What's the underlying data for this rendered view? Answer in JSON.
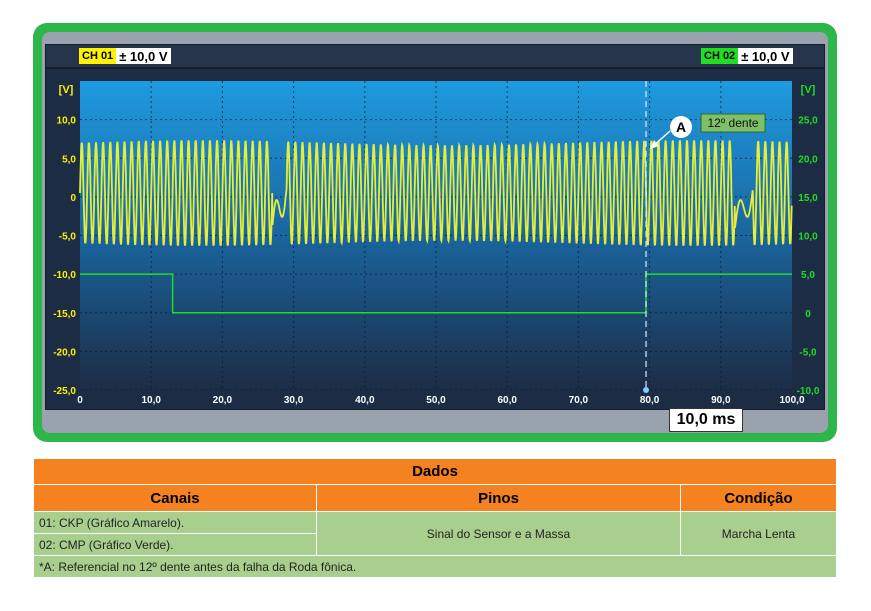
{
  "scope": {
    "ch1": {
      "tag": "CH 01",
      "range": "± 10,0 V",
      "color": "#fff200"
    },
    "ch2": {
      "tag": "CH 02",
      "range": "± 10,0 V",
      "color": "#22dd22"
    },
    "time_div": "10,0 ms",
    "background_top": "#1e9be0",
    "background_bottom": "#1c2c45"
  },
  "chart_data": {
    "type": "line",
    "title": "",
    "xlabel": "",
    "xlim": [
      0,
      100
    ],
    "x_ticks": [
      "0",
      "10,0",
      "20,0",
      "30,0",
      "40,0",
      "50,0",
      "60,0",
      "70,0",
      "80,0",
      "90,0",
      "100,0"
    ],
    "left_axis": {
      "unit": "[V]",
      "ylim": [
        -25,
        15
      ],
      "ticks": [
        "10,0",
        "5,0",
        "0",
        "-5,0",
        "-10,0",
        "-15,0",
        "-20,0",
        "-25,0"
      ],
      "color": "#fff200"
    },
    "right_axis": {
      "unit": "[V]",
      "ylim": [
        -10,
        30
      ],
      "ticks": [
        "25,0",
        "20,0",
        "15,0",
        "10,0",
        "5,0",
        "0",
        "-5,0",
        "-10,0"
      ],
      "color": "#22dd22"
    },
    "grid": true,
    "series": [
      {
        "channel": "CH 01",
        "color": "#e6ee3a",
        "axis": "left",
        "cycles_per_ms": 1.0,
        "amplitude_v": 6.5,
        "offset_v": 0.5,
        "gaps_ms": [
          [
            27.0,
            29.0
          ],
          [
            92.0,
            94.5
          ]
        ]
      },
      {
        "channel": "CH 02",
        "color": "#22dd22",
        "axis": "right",
        "points": [
          [
            0,
            5.0
          ],
          [
            13.0,
            5.0
          ],
          [
            13.0,
            0.0
          ],
          [
            79.5,
            0.0
          ],
          [
            79.5,
            5.0
          ],
          [
            100,
            5.0
          ]
        ]
      }
    ],
    "cursor": {
      "x_ms": 79.5,
      "label": "A",
      "annotation": "12º dente"
    }
  },
  "table": {
    "title": "Dados",
    "headers": [
      "Canais",
      "Pinos",
      "Condição"
    ],
    "rows": {
      "ch1": "01: CKP (Gráfico Amarelo).",
      "ch2": "02: CMP (Gráfico Verde).",
      "pinos": "Sinal do Sensor e a Massa",
      "condicao": "Marcha Lenta"
    },
    "footnote": "*A: Referencial no 12º dente antes da falha da Roda fônica."
  }
}
